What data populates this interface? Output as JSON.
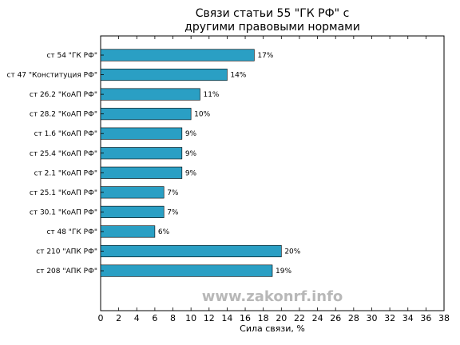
{
  "chart_data": {
    "type": "bar",
    "orientation": "horizontal",
    "title_line1": "Связи статьи 55 \"ГК РФ\" с",
    "title_line2": "другими правовыми нормами",
    "xlabel": "Сила связи, %",
    "ylabel": "",
    "xlim": [
      0,
      38
    ],
    "xticks": [
      0,
      2,
      4,
      6,
      8,
      10,
      12,
      14,
      16,
      18,
      20,
      22,
      24,
      26,
      28,
      30,
      32,
      34,
      36,
      38
    ],
    "grid": false,
    "bar_color": "#2a9fc4",
    "categories": [
      "ст 54 \"ГК РФ\"",
      "ст 47 \"Конституция РФ\"",
      "ст 26.2 \"КоАП РФ\"",
      "ст 28.2 \"КоАП РФ\"",
      "ст 1.6 \"КоАП РФ\"",
      "ст 25.4 \"КоАП РФ\"",
      "ст 2.1 \"КоАП РФ\"",
      "ст 25.1 \"КоАП РФ\"",
      "ст 30.1 \"КоАП РФ\"",
      "ст 48 \"ГК РФ\"",
      "ст 210 \"АПК РФ\"",
      "ст 208 \"АПК РФ\""
    ],
    "values": [
      17,
      14,
      11,
      10,
      9,
      9,
      9,
      7,
      7,
      6,
      20,
      19
    ],
    "data_labels": [
      "17%",
      "14%",
      "11%",
      "10%",
      "9%",
      "9%",
      "9%",
      "7%",
      "7%",
      "6%",
      "20%",
      "19%"
    ],
    "watermark": "www.zakonrf.info"
  }
}
